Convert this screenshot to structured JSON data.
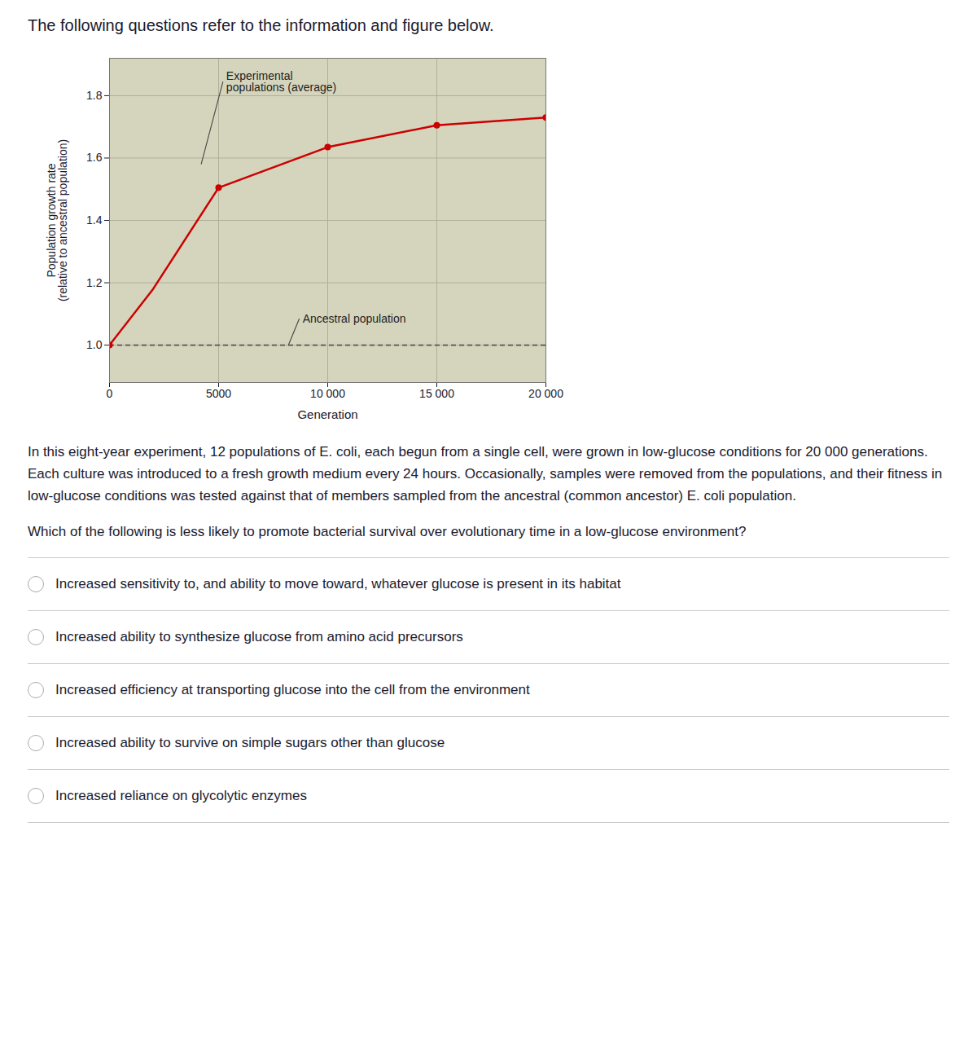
{
  "title": "The following questions refer to the information and figure below.",
  "paragraph": "In this eight-year experiment, 12 populations of E. coli, each begun from a single cell, were grown in low-glucose conditions for 20 000 generations. Each culture was introduced to a fresh growth medium every 24 hours. Occasionally, samples were removed from the populations, and their fitness in low-glucose conditions was tested against that of members sampled from the ancestral (common ancestor) E. coli population.",
  "question": "Which of the following is less likely to promote bacterial survival over evolutionary time in a low-glucose environment?",
  "options": [
    "Increased sensitivity to, and ability to move toward, whatever glucose is present in its habitat",
    "Increased ability to synthesize glucose from amino acid precursors",
    "Increased efficiency at transporting glucose into the cell from the environment",
    "Increased ability to survive on simple sugars other than glucose",
    "Increased reliance on glycolytic enzymes"
  ],
  "chart_data": {
    "type": "line",
    "x": [
      0,
      2000,
      5000,
      10000,
      15000,
      20000
    ],
    "series": [
      {
        "type": "line",
        "color": "#cc0000",
        "values": [
          1.0,
          1.18,
          1.505,
          1.635,
          1.705,
          1.73
        ]
      },
      {
        "type": "scatter",
        "color": "#cc0000",
        "marker": "circle",
        "values": [
          1.0,
          null,
          1.505,
          1.635,
          1.705,
          1.73
        ]
      }
    ],
    "x_label": "Generation",
    "y_label": "Population growth rate\n(relative to ancestral population)",
    "xlim": [
      0,
      20000
    ],
    "ylim": [
      0.88,
      1.92
    ],
    "xticks": [
      0,
      5000,
      {
        "value": 10000,
        "label": "10 000"
      },
      {
        "value": 15000,
        "label": "15 000"
      },
      {
        "value": 20000,
        "label": "20 000"
      }
    ],
    "yticks": [
      {
        "value": 1.0,
        "label": "1.0"
      },
      1.2,
      1.4,
      1.6,
      1.8
    ],
    "grid": true,
    "hlines": [
      {
        "y": 1.0,
        "color": "#555555",
        "line_style": "dashed"
      }
    ],
    "annotations": [
      {
        "text": "Experimental\npopulations (average)",
        "xy": [
          4200,
          1.58
        ],
        "xytext": [
          5200,
          1.845
        ]
      },
      {
        "text": "Ancestral population",
        "xy": [
          8200,
          1.0
        ],
        "xytext": [
          8700,
          1.085
        ]
      }
    ]
  }
}
